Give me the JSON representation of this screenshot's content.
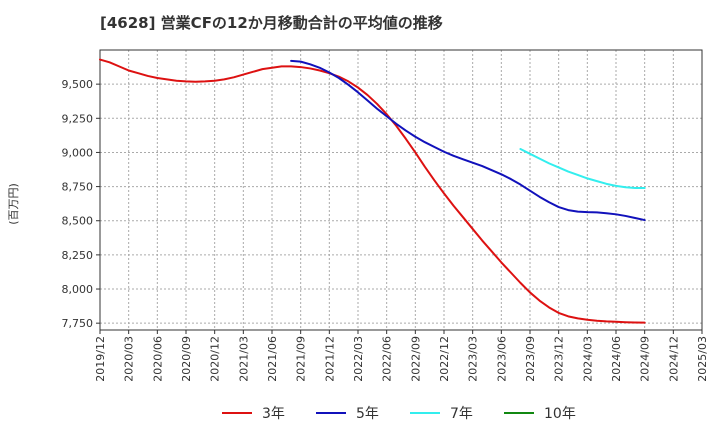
{
  "chart_data": {
    "type": "line",
    "title": "[4628]  営業CFの12か月移動合計の平均値の推移",
    "xlabel": "",
    "ylabel": "(百万円)",
    "ylim": [
      7700,
      9750
    ],
    "yticks": [
      7750,
      8000,
      8250,
      8500,
      8750,
      9000,
      9250,
      9500
    ],
    "ytick_labels": [
      "7,750",
      "8,000",
      "8,250",
      "8,500",
      "8,750",
      "9,000",
      "9,250",
      "9,500"
    ],
    "xlim": [
      "2019-12",
      "2025-03"
    ],
    "xtick_labels": [
      "2019/12",
      "2020/03",
      "2020/06",
      "2020/09",
      "2020/12",
      "2021/03",
      "2021/06",
      "2021/09",
      "2021/12",
      "2022/03",
      "2022/06",
      "2022/09",
      "2022/12",
      "2023/03",
      "2023/06",
      "2023/09",
      "2023/12",
      "2024/03",
      "2024/06",
      "2024/09",
      "2024/12",
      "2025/03"
    ],
    "grid": true,
    "legend_position": "bottom",
    "series": [
      {
        "name": "3年",
        "color": "#dd1111",
        "x": [
          "2019-12",
          "2020-01",
          "2020-02",
          "2020-03",
          "2020-04",
          "2020-05",
          "2020-06",
          "2020-07",
          "2020-08",
          "2020-09",
          "2020-10",
          "2020-11",
          "2020-12",
          "2021-01",
          "2021-02",
          "2021-03",
          "2021-04",
          "2021-05",
          "2021-06",
          "2021-07",
          "2021-08",
          "2021-09",
          "2021-10",
          "2021-11",
          "2021-12",
          "2022-01",
          "2022-02",
          "2022-03",
          "2022-04",
          "2022-05",
          "2022-06",
          "2022-07",
          "2022-08",
          "2022-09",
          "2022-10",
          "2022-11",
          "2022-12",
          "2023-01",
          "2023-02",
          "2023-03",
          "2023-04",
          "2023-05",
          "2023-06",
          "2023-07",
          "2023-08",
          "2023-09",
          "2023-10",
          "2023-11",
          "2023-12",
          "2024-01",
          "2024-02",
          "2024-03",
          "2024-04",
          "2024-05",
          "2024-06",
          "2024-07",
          "2024-08",
          "2024-09"
        ],
        "values": [
          9680,
          9660,
          9630,
          9600,
          9580,
          9560,
          9545,
          9535,
          9525,
          9520,
          9518,
          9520,
          9525,
          9535,
          9550,
          9570,
          9590,
          9610,
          9620,
          9630,
          9630,
          9625,
          9615,
          9600,
          9580,
          9555,
          9520,
          9475,
          9420,
          9355,
          9280,
          9195,
          9100,
          9000,
          8895,
          8795,
          8700,
          8610,
          8525,
          8440,
          8355,
          8275,
          8195,
          8120,
          8045,
          7975,
          7915,
          7865,
          7825,
          7800,
          7785,
          7775,
          7768,
          7763,
          7760,
          7757,
          7755,
          7754
        ]
      },
      {
        "name": "5年",
        "color": "#1111bb",
        "x": [
          "2021-08",
          "2021-09",
          "2021-10",
          "2021-11",
          "2021-12",
          "2022-01",
          "2022-02",
          "2022-03",
          "2022-04",
          "2022-05",
          "2022-06",
          "2022-07",
          "2022-08",
          "2022-09",
          "2022-10",
          "2022-11",
          "2022-12",
          "2023-01",
          "2023-02",
          "2023-03",
          "2023-04",
          "2023-05",
          "2023-06",
          "2023-07",
          "2023-08",
          "2023-09",
          "2023-10",
          "2023-11",
          "2023-12",
          "2024-01",
          "2024-02",
          "2024-03",
          "2024-04",
          "2024-05",
          "2024-06",
          "2024-07",
          "2024-08",
          "2024-09"
        ],
        "values": [
          9670,
          9665,
          9645,
          9620,
          9585,
          9545,
          9495,
          9440,
          9380,
          9320,
          9265,
          9210,
          9160,
          9115,
          9075,
          9040,
          9005,
          8975,
          8950,
          8925,
          8900,
          8870,
          8840,
          8805,
          8765,
          8720,
          8675,
          8635,
          8600,
          8578,
          8567,
          8563,
          8561,
          8555,
          8547,
          8535,
          8520,
          8505
        ]
      },
      {
        "name": "7年",
        "color": "#33eeee",
        "x": [
          "2023-08",
          "2023-09",
          "2023-10",
          "2023-11",
          "2023-12",
          "2024-01",
          "2024-02",
          "2024-03",
          "2024-04",
          "2024-05",
          "2024-06",
          "2024-07",
          "2024-08",
          "2024-09"
        ],
        "values": [
          9025,
          8990,
          8955,
          8920,
          8890,
          8860,
          8835,
          8810,
          8790,
          8770,
          8755,
          8745,
          8740,
          8740
        ]
      },
      {
        "name": "10年",
        "color": "#118811",
        "x": [],
        "values": []
      }
    ]
  }
}
